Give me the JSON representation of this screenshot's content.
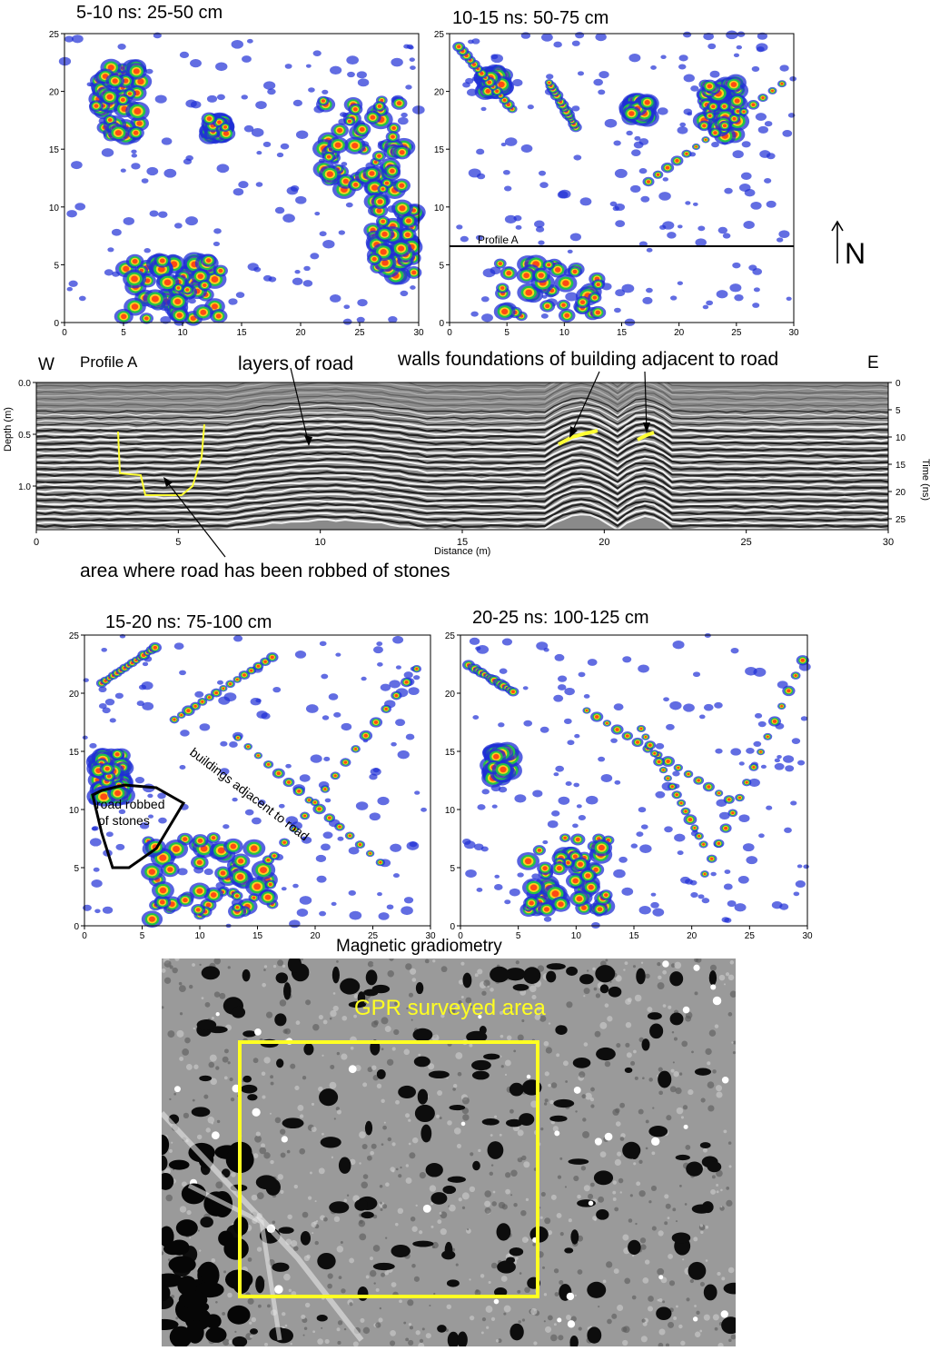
{
  "slices": [
    {
      "title": "5-10 ns: 25-50 cm",
      "x_ticks": [
        "0",
        "5",
        "10",
        "15",
        "20",
        "25",
        "30"
      ],
      "y_ticks": [
        "0",
        "5",
        "10",
        "15",
        "20",
        "25"
      ]
    },
    {
      "title": "10-15 ns: 50-75 cm",
      "x_ticks": [
        "0",
        "5",
        "10",
        "15",
        "20",
        "25",
        "30"
      ],
      "y_ticks": [
        "0",
        "5",
        "10",
        "15",
        "20",
        "25"
      ],
      "profile_label": "Profile A"
    },
    {
      "title": "15-20 ns: 75-100 cm",
      "x_ticks": [
        "0",
        "5",
        "10",
        "15",
        "20",
        "25",
        "30"
      ],
      "y_ticks": [
        "0",
        "5",
        "10",
        "15",
        "20",
        "25"
      ],
      "annotations": [
        "road robbed",
        "of stones",
        "buildings adjacent to road"
      ]
    },
    {
      "title": "20-25 ns: 100-125 cm",
      "x_ticks": [
        "0",
        "5",
        "10",
        "15",
        "20",
        "25",
        "30"
      ],
      "y_ticks": [
        "0",
        "5",
        "10",
        "15",
        "20",
        "25"
      ]
    }
  ],
  "north_label": "N",
  "colors": {
    "high": "#ff4a14",
    "mid_high": "#ffd21e",
    "mid": "#22c24a",
    "low": "#1f2fd6",
    "highlight": "#ffff33"
  },
  "profile": {
    "title": "Profile A",
    "west": "W",
    "east": "E",
    "depth_label": "Depth (m)",
    "time_label": "Time (ns)",
    "distance_label": "Distance (m)",
    "depth_ticks": [
      "0.0",
      "0.5",
      "1.0"
    ],
    "time_ticks": [
      "0",
      "5",
      "10",
      "15",
      "20",
      "25"
    ],
    "distance_ticks": [
      "0",
      "5",
      "10",
      "15",
      "20",
      "25",
      "30"
    ],
    "ann_layers": "layers of road",
    "ann_walls": "walls foundations of building adjacent to road",
    "ann_robbed": "area where road has been robbed of stones"
  },
  "magnetic": {
    "title": "Magnetic gradiometry",
    "box_label": "GPR surveyed area"
  }
}
